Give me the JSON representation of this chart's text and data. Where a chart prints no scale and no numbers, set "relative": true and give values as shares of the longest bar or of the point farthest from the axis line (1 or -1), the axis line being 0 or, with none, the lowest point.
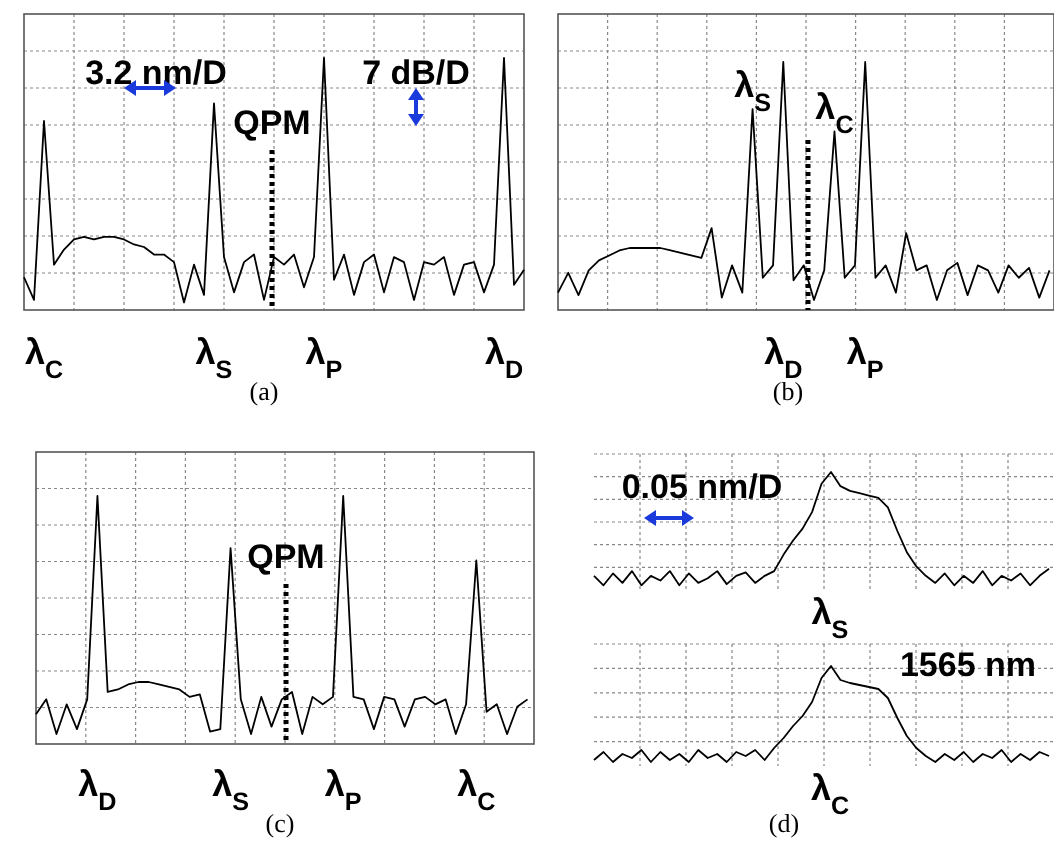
{
  "chart_data": [
    {
      "type": "line",
      "relative": true,
      "tick_labels": "x",
      "grid": true,
      "annotations": [
        "3.2 nm/D",
        "7 dB/D",
        "QPM",
        "(a)"
      ],
      "categories": [
        null,
        null,
        "λ$_{C}$",
        null,
        null,
        null,
        null,
        null,
        null,
        null,
        null,
        null,
        null,
        null,
        null,
        null,
        null,
        null,
        null,
        "λ$_{S}$",
        null,
        null,
        null,
        null,
        null,
        null,
        null,
        null,
        null,
        null,
        "λ$_{P}$",
        null,
        null,
        null,
        null,
        null,
        null,
        null,
        null,
        null,
        null,
        null,
        null,
        null,
        null,
        null,
        null,
        null,
        "λ$_{D}$",
        null,
        null
      ],
      "series": [
        {
          "color": "#000000",
          "values": [
            0.13,
            0.04,
            0.75,
            0.18,
            0.24,
            0.28,
            0.29,
            0.28,
            0.29,
            0.29,
            0.28,
            0.26,
            0.25,
            0.22,
            0.22,
            0.19,
            0.03,
            0.18,
            0.06,
            0.82,
            0.21,
            0.07,
            0.19,
            0.22,
            0.04,
            0.21,
            0.18,
            0.22,
            0.09,
            0.21,
            1,
            0.12,
            0.22,
            0.06,
            0.19,
            0.22,
            0.07,
            0.21,
            0.19,
            0.04,
            0.19,
            0.18,
            0.21,
            0.06,
            0.18,
            0.19,
            0.07,
            0.18,
            1,
            0.1,
            0.16
          ]
        }
      ]
    },
    {
      "type": "line",
      "relative": true,
      "tick_labels": "x",
      "grid": true,
      "annotations": [
        "(b)"
      ],
      "categories": [
        null,
        null,
        null,
        null,
        null,
        null,
        null,
        null,
        null,
        null,
        null,
        null,
        null,
        null,
        null,
        null,
        null,
        null,
        null,
        "λ$_{S}$",
        null,
        null,
        "λ$_{D}$",
        null,
        null,
        null,
        null,
        "λ$_{C}$",
        null,
        null,
        "λ$_{P}$",
        null,
        null,
        null,
        null,
        null,
        null,
        null,
        null,
        null,
        null,
        null,
        null,
        null,
        null,
        null,
        null,
        null,
        null
      ],
      "series": [
        {
          "color": "#000000",
          "values": [
            0.07,
            0.15,
            0.06,
            0.16,
            0.2,
            0.22,
            0.24,
            0.25,
            0.25,
            0.25,
            0.25,
            0.24,
            0.23,
            0.22,
            0.21,
            0.33,
            0.05,
            0.18,
            0.07,
            0.81,
            0.13,
            0.18,
            1,
            0.12,
            0.18,
            0.04,
            0.16,
            0.72,
            0.13,
            0.18,
            1,
            0.13,
            0.18,
            0.07,
            0.31,
            0.16,
            0.18,
            0.04,
            0.16,
            0.19,
            0.06,
            0.18,
            0.16,
            0.07,
            0.18,
            0.13,
            0.17,
            0.05,
            0.16
          ]
        }
      ]
    },
    {
      "type": "line",
      "relative": true,
      "tick_labels": "x",
      "grid": true,
      "annotations": [
        "QPM",
        "(c)"
      ],
      "categories": [
        null,
        null,
        null,
        null,
        null,
        null,
        "λ$_{D}$",
        null,
        null,
        null,
        null,
        null,
        null,
        null,
        null,
        null,
        null,
        null,
        null,
        "λ$_{S}$",
        null,
        null,
        null,
        null,
        null,
        null,
        null,
        null,
        null,
        null,
        "λ$_{P}$",
        null,
        null,
        null,
        null,
        null,
        null,
        null,
        null,
        null,
        null,
        null,
        null,
        "λ$_{C}$",
        null,
        null,
        null,
        null,
        null
      ],
      "series": [
        {
          "color": "#000000",
          "values": [
            0.12,
            0.18,
            0.04,
            0.16,
            0.06,
            0.18,
            1,
            0.21,
            0.22,
            0.24,
            0.25,
            0.25,
            0.24,
            0.23,
            0.22,
            0.19,
            0.2,
            0.05,
            0.06,
            0.79,
            0.18,
            0.04,
            0.19,
            0.07,
            0.18,
            0.21,
            0.04,
            0.19,
            0.16,
            0.19,
            1,
            0.19,
            0.18,
            0.06,
            0.19,
            0.18,
            0.07,
            0.18,
            0.19,
            0.16,
            0.18,
            0.04,
            0.16,
            0.74,
            0.13,
            0.16,
            0.04,
            0.15,
            0.18
          ]
        }
      ]
    },
    {
      "type": "line",
      "relative": true,
      "tick_labels": false,
      "grid": true,
      "annotations": [
        "0.05 nm/D",
        "λ$_{S}$"
      ],
      "categories": [
        null,
        null,
        null,
        null,
        null,
        null,
        null,
        null,
        null,
        null,
        null,
        null,
        null,
        null,
        null,
        null,
        null,
        null,
        null,
        null,
        null,
        null,
        null,
        null,
        null,
        null,
        null,
        null,
        null,
        null,
        null,
        null,
        null,
        null,
        null,
        null,
        null,
        null,
        null,
        null,
        null,
        null,
        null,
        null,
        null,
        null,
        null,
        null,
        null
      ],
      "series": [
        {
          "color": "#000000",
          "values": [
            0.12,
            0.04,
            0.14,
            0.06,
            0.16,
            0.04,
            0.12,
            0.08,
            0.16,
            0.04,
            0.14,
            0.06,
            0.1,
            0.16,
            0.05,
            0.12,
            0.15,
            0.06,
            0.12,
            0.16,
            0.3,
            0.42,
            0.52,
            0.66,
            0.9,
            1,
            0.88,
            0.84,
            0.82,
            0.8,
            0.78,
            0.7,
            0.5,
            0.32,
            0.2,
            0.12,
            0.06,
            0.14,
            0.04,
            0.12,
            0.06,
            0.16,
            0.04,
            0.12,
            0.08,
            0.14,
            0.04,
            0.12,
            0.18
          ]
        }
      ]
    },
    {
      "type": "line",
      "relative": true,
      "tick_labels": false,
      "grid": true,
      "annotations": [
        "1565 nm",
        "λ$_{C}$",
        "(d)"
      ],
      "categories": [
        null,
        null,
        null,
        null,
        null,
        null,
        null,
        null,
        null,
        null,
        null,
        null,
        null,
        null,
        null,
        null,
        null,
        null,
        null,
        null,
        null,
        null,
        null,
        null,
        null,
        null,
        null,
        null,
        null,
        null,
        null,
        null,
        null,
        null,
        null,
        null,
        null,
        null,
        null,
        null,
        null,
        null,
        null,
        null,
        null,
        null,
        null,
        null,
        null
      ],
      "series": [
        {
          "color": "#000000",
          "values": [
            0.06,
            0.14,
            0.04,
            0.12,
            0.08,
            0.16,
            0.04,
            0.14,
            0.06,
            0.12,
            0.04,
            0.16,
            0.08,
            0.12,
            0.04,
            0.14,
            0.1,
            0.16,
            0.06,
            0.18,
            0.28,
            0.4,
            0.5,
            0.64,
            0.88,
            1,
            0.86,
            0.83,
            0.81,
            0.79,
            0.77,
            0.68,
            0.48,
            0.3,
            0.18,
            0.1,
            0.04,
            0.12,
            0.06,
            0.14,
            0.04,
            0.12,
            0.08,
            0.16,
            0.04,
            0.12,
            0.06,
            0.14,
            0.1
          ]
        }
      ]
    }
  ]
}
